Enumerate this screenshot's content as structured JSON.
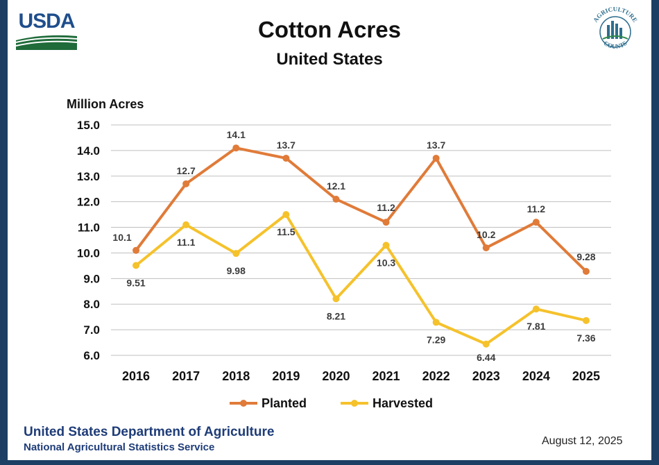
{
  "header": {
    "logo_text": "USDA",
    "seal_top_text": "AGRICULTURE",
    "seal_bottom_text": "COUNTS"
  },
  "footer": {
    "org": "United States Department of Agriculture",
    "service": "National Agricultural Statistics Service",
    "date": "August 12, 2025"
  },
  "colors": {
    "background": "#1c3f63",
    "planted": "#e07b39",
    "harvested": "#f5c22c",
    "grid": "#bfbfbf"
  },
  "chart_data": {
    "type": "line",
    "title": "Cotton Acres",
    "subtitle": "United States",
    "ylabel": "Million Acres",
    "xlabel": "",
    "ylim": [
      6.0,
      15.0
    ],
    "ystep": 1.0,
    "yticks": [
      "6.0",
      "7.0",
      "8.0",
      "9.0",
      "10.0",
      "11.0",
      "12.0",
      "13.0",
      "14.0",
      "15.0"
    ],
    "categories": [
      "2016",
      "2017",
      "2018",
      "2019",
      "2020",
      "2021",
      "2022",
      "2023",
      "2024",
      "2025"
    ],
    "grid": "horizontal",
    "legend_position": "bottom",
    "series": [
      {
        "name": "Planted",
        "values": [
          10.1,
          12.7,
          14.1,
          13.7,
          12.1,
          11.2,
          13.7,
          10.2,
          11.2,
          9.28
        ],
        "labels": [
          "10.1",
          "12.7",
          "14.1",
          "13.7",
          "12.1",
          "11.2",
          "13.7",
          "10.2",
          "11.2",
          "9.28"
        ]
      },
      {
        "name": "Harvested",
        "values": [
          9.51,
          11.1,
          9.98,
          11.5,
          8.21,
          10.3,
          7.29,
          6.44,
          7.81,
          7.36
        ],
        "labels": [
          "9.51",
          "11.1",
          "9.98",
          "11.5",
          "8.21",
          "10.3",
          "7.29",
          "6.44",
          "7.81",
          "7.36"
        ]
      }
    ]
  }
}
